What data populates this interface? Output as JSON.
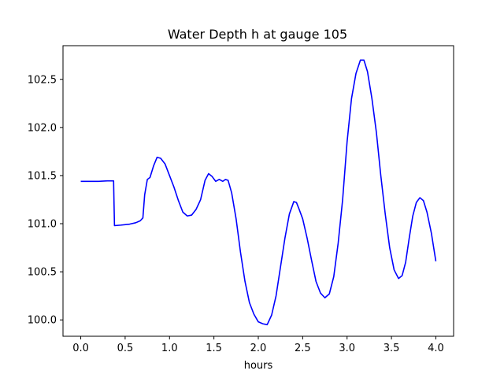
{
  "chart_data": {
    "type": "line",
    "title": "Water Depth h at gauge 105",
    "xlabel": "hours",
    "ylabel": "",
    "xlim": [
      -0.2,
      4.2
    ],
    "ylim": [
      99.83,
      102.85
    ],
    "xticks": [
      0.0,
      0.5,
      1.0,
      1.5,
      2.0,
      2.5,
      3.0,
      3.5,
      4.0
    ],
    "xtick_labels": [
      "0.0",
      "0.5",
      "1.0",
      "1.5",
      "2.0",
      "2.5",
      "3.0",
      "3.5",
      "4.0"
    ],
    "yticks": [
      100.0,
      100.5,
      101.0,
      101.5,
      102.0,
      102.5
    ],
    "ytick_labels": [
      "100.0",
      "100.5",
      "101.0",
      "101.5",
      "102.0",
      "102.5"
    ],
    "grid": false,
    "series": [
      {
        "color": "#0000ff",
        "x": [
          0.0,
          0.1,
          0.2,
          0.3,
          0.37,
          0.375,
          0.38,
          0.45,
          0.55,
          0.62,
          0.67,
          0.7,
          0.72,
          0.75,
          0.78,
          0.82,
          0.86,
          0.9,
          0.95,
          1.0,
          1.05,
          1.1,
          1.15,
          1.2,
          1.25,
          1.3,
          1.35,
          1.4,
          1.44,
          1.48,
          1.52,
          1.56,
          1.6,
          1.63,
          1.66,
          1.7,
          1.75,
          1.8,
          1.85,
          1.9,
          1.95,
          2.0,
          2.05,
          2.1,
          2.15,
          2.2,
          2.25,
          2.3,
          2.35,
          2.4,
          2.43,
          2.46,
          2.5,
          2.55,
          2.6,
          2.65,
          2.7,
          2.75,
          2.8,
          2.85,
          2.9,
          2.95,
          3.0,
          3.05,
          3.1,
          3.15,
          3.19,
          3.23,
          3.28,
          3.33,
          3.38,
          3.43,
          3.48,
          3.53,
          3.58,
          3.62,
          3.66,
          3.7,
          3.74,
          3.78,
          3.82,
          3.86,
          3.9,
          3.95,
          4.0
        ],
        "y": [
          101.44,
          101.44,
          101.44,
          101.445,
          101.445,
          101.2,
          100.98,
          100.985,
          100.995,
          101.01,
          101.03,
          101.06,
          101.3,
          101.46,
          101.48,
          101.6,
          101.69,
          101.68,
          101.62,
          101.5,
          101.38,
          101.24,
          101.12,
          101.08,
          101.09,
          101.15,
          101.25,
          101.45,
          101.52,
          101.49,
          101.44,
          101.46,
          101.44,
          101.46,
          101.45,
          101.32,
          101.05,
          100.7,
          100.4,
          100.18,
          100.06,
          99.98,
          99.96,
          99.95,
          100.05,
          100.25,
          100.55,
          100.85,
          101.1,
          101.23,
          101.22,
          101.15,
          101.05,
          100.85,
          100.62,
          100.4,
          100.28,
          100.23,
          100.27,
          100.45,
          100.8,
          101.25,
          101.85,
          102.3,
          102.56,
          102.7,
          102.7,
          102.58,
          102.3,
          101.95,
          101.5,
          101.1,
          100.75,
          100.52,
          100.43,
          100.46,
          100.6,
          100.85,
          101.08,
          101.22,
          101.27,
          101.24,
          101.12,
          100.9,
          100.61
        ]
      }
    ]
  }
}
